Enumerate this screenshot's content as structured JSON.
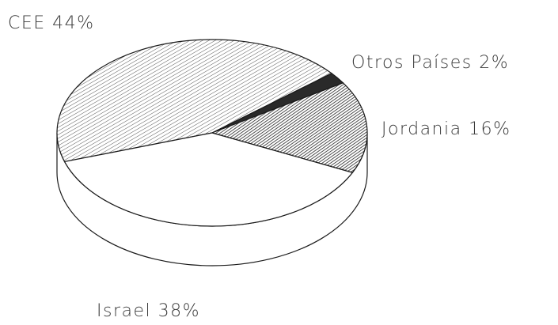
{
  "chart_data": {
    "type": "pie",
    "style": "3d-exploded-none",
    "slices": [
      {
        "label": "CEE 44%",
        "name": "CEE",
        "value": 44,
        "fill": "hatch-light"
      },
      {
        "label": "Otros Países 2%",
        "name": "Otros Países",
        "value": 2,
        "fill": "solid-dark"
      },
      {
        "label": "Jordania 16%",
        "name": "Jordania",
        "value": 16,
        "fill": "hatch-dense"
      },
      {
        "label": "Israel 38%",
        "name": "Israel",
        "value": 38,
        "fill": "white"
      }
    ],
    "colors": {
      "ink": "#1a1a1a",
      "dark_slice": "#2a2a2a",
      "background": "#ffffff"
    }
  }
}
